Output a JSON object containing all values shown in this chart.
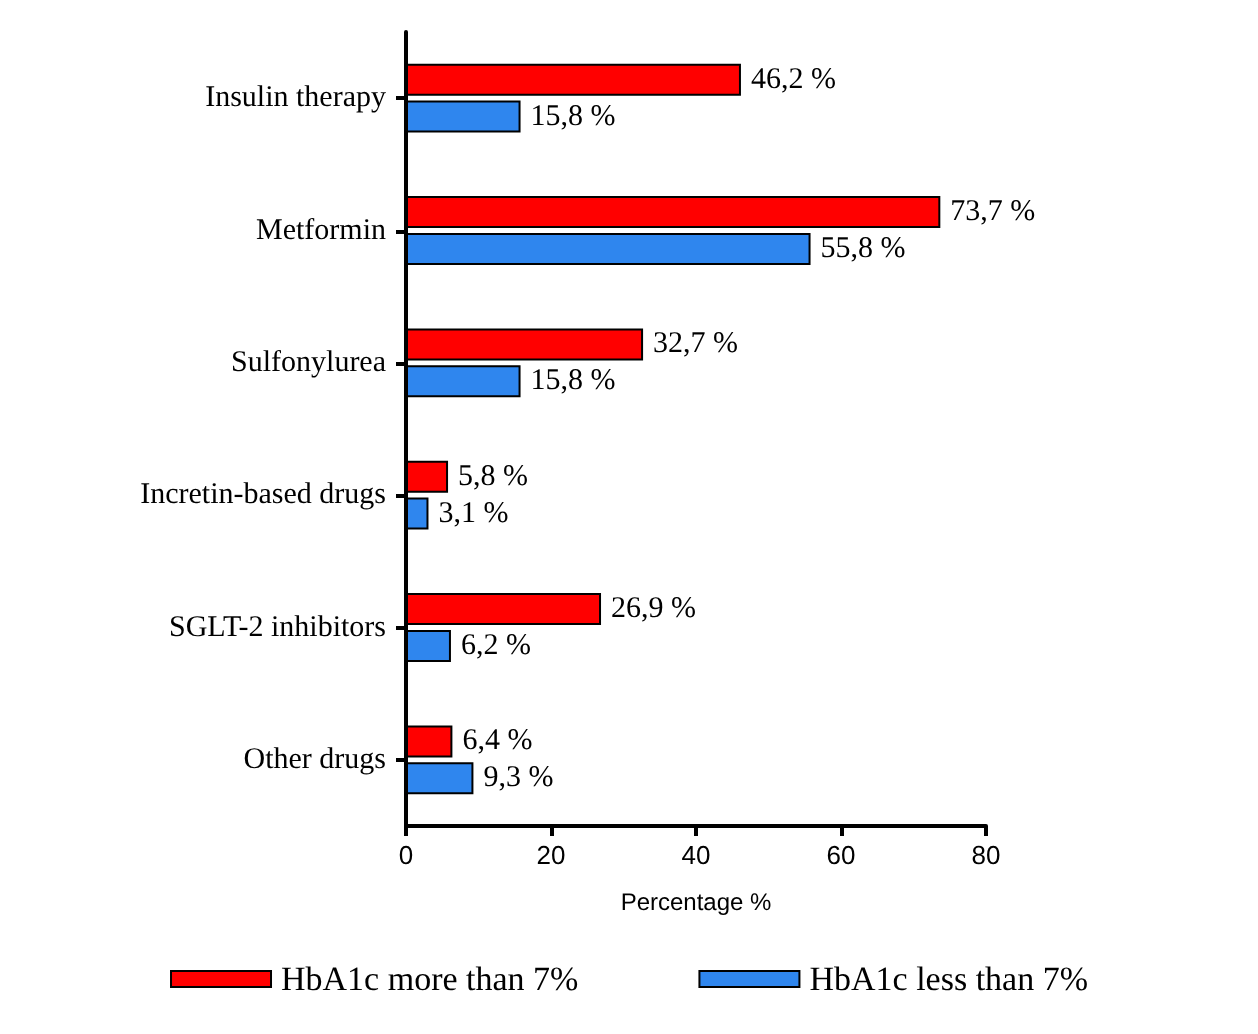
{
  "chart_data": {
    "type": "bar",
    "orientation": "horizontal",
    "categories": [
      "Insulin therapy",
      "Metformin",
      "Sulfonylurea",
      "Incretin-based drugs",
      "SGLT-2 inhibitors",
      "Other drugs"
    ],
    "series": [
      {
        "name": "HbA1c more than 7%",
        "color": "#ff0000",
        "values": [
          46.2,
          73.7,
          32.7,
          5.8,
          26.9,
          6.4
        ],
        "value_labels": [
          "46,2 %",
          "73,7 %",
          "32,7 %",
          "5,8 %",
          "26,9 %",
          "6,4 %"
        ]
      },
      {
        "name": "HbA1c less than 7%",
        "color": "#2f86ee",
        "values": [
          15.8,
          55.8,
          15.8,
          3.1,
          6.2,
          9.3
        ],
        "value_labels": [
          "15,8 %",
          "55,8 %",
          "15,8 %",
          "3,1 %",
          "6,2 %",
          "9,3 %"
        ]
      }
    ],
    "xlabel": "Percentage %",
    "xlim": [
      0,
      80
    ],
    "xticks": [
      0,
      20,
      40,
      60,
      80
    ],
    "grid": false,
    "legend": "bottom"
  }
}
